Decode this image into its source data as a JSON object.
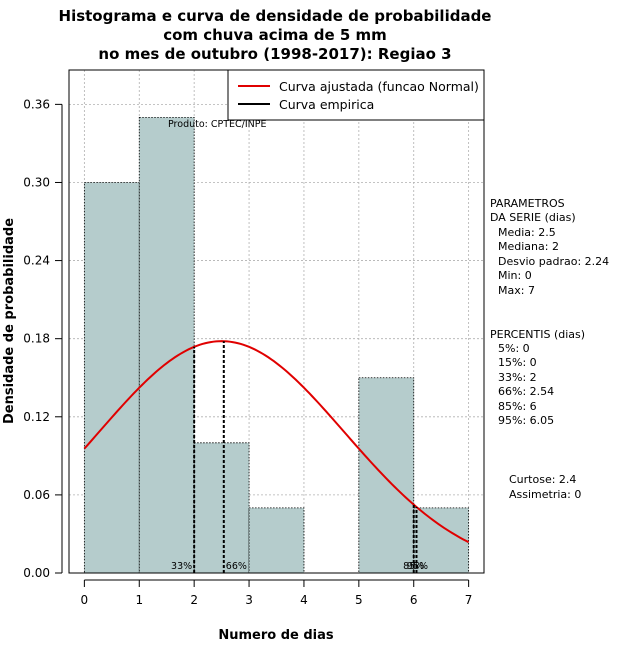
{
  "chart_data": {
    "type": "bar",
    "title": [
      "Histograma e curva de densidade de probabilidade",
      "com chuva acima de 5 mm",
      "no mes de outubro (1998-2017): Regiao 3"
    ],
    "xlabel": "Numero de dias",
    "ylabel": "Densidade de probabilidade",
    "xlim": [
      -0.28,
      7.28
    ],
    "ylim": [
      0,
      0.3864
    ],
    "x_ticks": [
      0,
      1,
      2,
      3,
      4,
      5,
      6,
      7
    ],
    "y_ticks": [
      0.0,
      0.06,
      0.12,
      0.18,
      0.24,
      0.3,
      0.36
    ],
    "y_tick_labels": [
      "0.00",
      "0.06",
      "0.12",
      "0.18",
      "0.24",
      "0.30",
      "0.36"
    ],
    "bins": [
      {
        "x0": 0,
        "x1": 1,
        "density": 0.3
      },
      {
        "x0": 1,
        "x1": 2,
        "density": 0.35
      },
      {
        "x0": 2,
        "x1": 3,
        "density": 0.1
      },
      {
        "x0": 3,
        "x1": 4,
        "density": 0.05
      },
      {
        "x0": 4,
        "x1": 5,
        "density": 0.0
      },
      {
        "x0": 5,
        "x1": 6,
        "density": 0.15
      },
      {
        "x0": 6,
        "x1": 7,
        "density": 0.05
      }
    ],
    "normal_curve": {
      "mean": 2.5,
      "sd": 2.24,
      "x_range": [
        0,
        7
      ],
      "color": "#e00000"
    },
    "legend": [
      {
        "label": "Curva ajustada (funcao Normal)",
        "color": "#e00000"
      },
      {
        "label": "Curva empirica",
        "color": "#000000"
      }
    ],
    "legend_position": "top-right",
    "grid": true,
    "percentile_markers": [
      {
        "label": "33%",
        "x": 2
      },
      {
        "label": "66%",
        "x": 2.54
      },
      {
        "label": "85%",
        "x": 6
      },
      {
        "label": "95%",
        "x": 6.05
      }
    ],
    "annotation": "Produto: CPTEC/INPE",
    "parametros": {
      "heading": [
        "PARAMETROS",
        "DA SERIE (dias)"
      ],
      "lines": [
        "Media: 2.5",
        "Mediana: 2",
        "Desvio padrao: 2.24",
        "Min: 0",
        "Max: 7"
      ]
    },
    "percentis": {
      "heading": "PERCENTIS (dias)",
      "lines": [
        "5%: 0",
        "15%: 0",
        "33%: 2",
        "66%: 2.54",
        "85%: 6",
        "95%: 6.05"
      ]
    },
    "shape": {
      "lines": [
        "Curtose: 2.4",
        "Assimetria: 0"
      ]
    }
  }
}
